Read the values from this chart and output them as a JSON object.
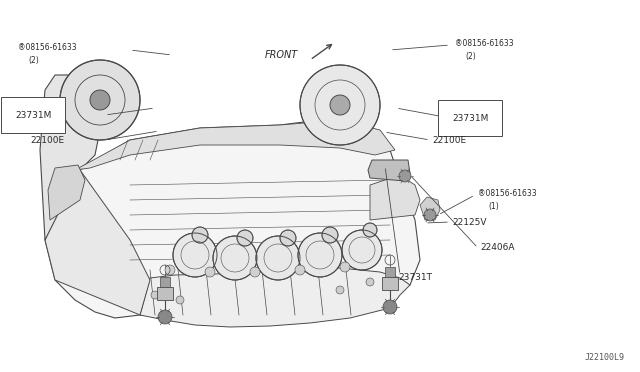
{
  "bg_color": "#ffffff",
  "line_color": "#4a4a4a",
  "text_color": "#2a2a2a",
  "fig_width": 6.4,
  "fig_height": 3.72,
  "dpi": 100,
  "watermark": "J22100L9",
  "labels_left_bolt": [
    "®08156-61633",
    "(2)"
  ],
  "labels_right_bolt_top": [
    "®08156-61633",
    "(2)"
  ],
  "labels_right_bolt_mid": [
    "®08156-61633",
    "(1)"
  ],
  "label_23731M_left": "23731M",
  "label_22100E_left": "22100E",
  "label_23731M_right": "23731M",
  "label_22100E_right": "22100E",
  "label_22125V": "22125V",
  "label_22406A": "22406A",
  "label_23731T": "23731T",
  "label_front": "FRONT",
  "font_small": 5.5,
  "font_med": 6.5
}
